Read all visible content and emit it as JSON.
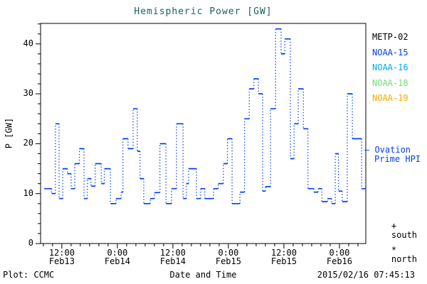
{
  "title": "Hemispheric Power [GW]",
  "colors": {
    "title": "#166060",
    "axis": "#000000",
    "model_blue": "#0040f0"
  },
  "footer": {
    "left": "Plot: CCMC",
    "right": "2015/02/16 07:45:13"
  },
  "legend": {
    "satellites": [
      {
        "label": "METP-02",
        "color": "#000000"
      },
      {
        "label": "NOAA-15",
        "color": "#0040f0"
      },
      {
        "label": "NOAA-16",
        "color": "#00a6ff"
      },
      {
        "label": "NOAA-18",
        "color": "#6fe07a"
      },
      {
        "label": "NOAA-19",
        "color": "#ffa500"
      }
    ],
    "model": {
      "line1": "— Ovation",
      "line2": "Prime HPI",
      "color": "#0040f0"
    },
    "markers": [
      {
        "symbol": "+",
        "label": "south"
      },
      {
        "symbol": "*",
        "label": "north"
      }
    ]
  },
  "chart_data": {
    "type": "line",
    "style": "stair-steps, horizontal solid segments joined by dotted verticals",
    "title": "Hemispheric Power [GW]",
    "xlabel": "Date and Time",
    "ylabel": "P [GW]",
    "series_name": "Ovation Prime HPI",
    "series_color": "#0040f0",
    "ylim": [
      0,
      44.1
    ],
    "y_major_ticks": [
      0,
      10,
      20,
      30,
      40
    ],
    "y_minor_step": 2,
    "x_unit": "hours since 2015-02-13 00:00 UT",
    "xlim": [
      7.4,
      77.7
    ],
    "x_minor_step": 2,
    "grid": false,
    "legend_position": "right-outside",
    "x_major_ticks": [
      {
        "t": 12,
        "time": "12:00",
        "date": "Feb13"
      },
      {
        "t": 24,
        "time": "0:00",
        "date": "Feb14"
      },
      {
        "t": 36,
        "time": "12:00",
        "date": "Feb14"
      },
      {
        "t": 48,
        "time": "0:00",
        "date": "Feb15"
      },
      {
        "t": 60,
        "time": "12:00",
        "date": "Feb15"
      },
      {
        "t": 72,
        "time": "0:00",
        "date": "Feb16"
      }
    ],
    "steps": [
      [
        8.2,
        11
      ],
      [
        9.8,
        10
      ],
      [
        10.6,
        24
      ],
      [
        11.4,
        9
      ],
      [
        12.2,
        15
      ],
      [
        13.2,
        14
      ],
      [
        14.0,
        11
      ],
      [
        14.8,
        16
      ],
      [
        15.8,
        19
      ],
      [
        16.8,
        9
      ],
      [
        17.5,
        13
      ],
      [
        18.3,
        11.5
      ],
      [
        19.2,
        16
      ],
      [
        20.5,
        12
      ],
      [
        21.2,
        15
      ],
      [
        22.5,
        8
      ],
      [
        23.7,
        9
      ],
      [
        24.8,
        10.3
      ],
      [
        25.2,
        21
      ],
      [
        26.3,
        19
      ],
      [
        27.4,
        27
      ],
      [
        28.3,
        18.5
      ],
      [
        28.9,
        13
      ],
      [
        29.7,
        8
      ],
      [
        31.1,
        9
      ],
      [
        32.0,
        10.2
      ],
      [
        33.2,
        20
      ],
      [
        34.5,
        8
      ],
      [
        35.7,
        11
      ],
      [
        36.8,
        24
      ],
      [
        38.2,
        9
      ],
      [
        38.9,
        12
      ],
      [
        39.4,
        15
      ],
      [
        41.1,
        9
      ],
      [
        42.0,
        11
      ],
      [
        42.9,
        9
      ],
      [
        44.8,
        11
      ],
      [
        45.8,
        12
      ],
      [
        46.9,
        16
      ],
      [
        47.8,
        21
      ],
      [
        48.8,
        8
      ],
      [
        50.5,
        10.3
      ],
      [
        51.5,
        25
      ],
      [
        52.5,
        31
      ],
      [
        53.5,
        33
      ],
      [
        54.5,
        30
      ],
      [
        55.4,
        10.5
      ],
      [
        56.0,
        11.4
      ],
      [
        57.1,
        27
      ],
      [
        58.2,
        43
      ],
      [
        59.4,
        38
      ],
      [
        60.2,
        41
      ],
      [
        61.4,
        17
      ],
      [
        62.2,
        24
      ],
      [
        63.1,
        31
      ],
      [
        64.2,
        23
      ],
      [
        65.2,
        11
      ],
      [
        66.5,
        10.3
      ],
      [
        67.4,
        11
      ],
      [
        68.2,
        8.4
      ],
      [
        69.4,
        9
      ],
      [
        70.3,
        8
      ],
      [
        71.1,
        18
      ],
      [
        71.8,
        10.5
      ],
      [
        72.6,
        8.4
      ],
      [
        73.7,
        30
      ],
      [
        74.8,
        21
      ],
      [
        76.8,
        11
      ]
    ]
  }
}
